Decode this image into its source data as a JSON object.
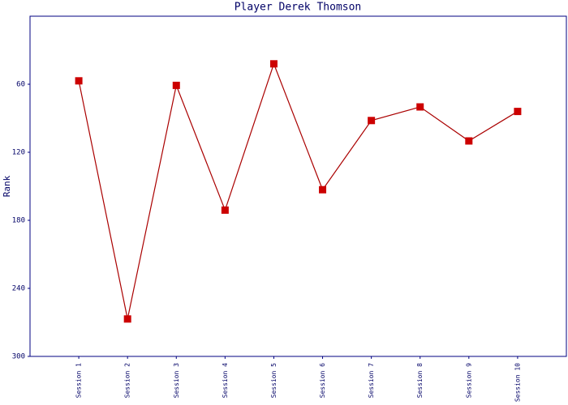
{
  "chart_data": {
    "type": "line",
    "title": "Player Derek Thomson",
    "y_label": "Rank",
    "categories": [
      "Session 1",
      "Session 2",
      "Session 3",
      "Session 4",
      "Session 5",
      "Session 6",
      "Session 7",
      "Session 8",
      "Session 9",
      "Session 10"
    ],
    "series": [
      {
        "name": "Rank",
        "color": "#aa0000",
        "marker_color": "#cc0000",
        "values": [
          57,
          267,
          61,
          171,
          42,
          153,
          92,
          80,
          110,
          84
        ]
      }
    ],
    "ylim": [
      0,
      300
    ],
    "y_inverted": true,
    "yticks": [
      60,
      120,
      180,
      240,
      300
    ],
    "grid": false
  }
}
